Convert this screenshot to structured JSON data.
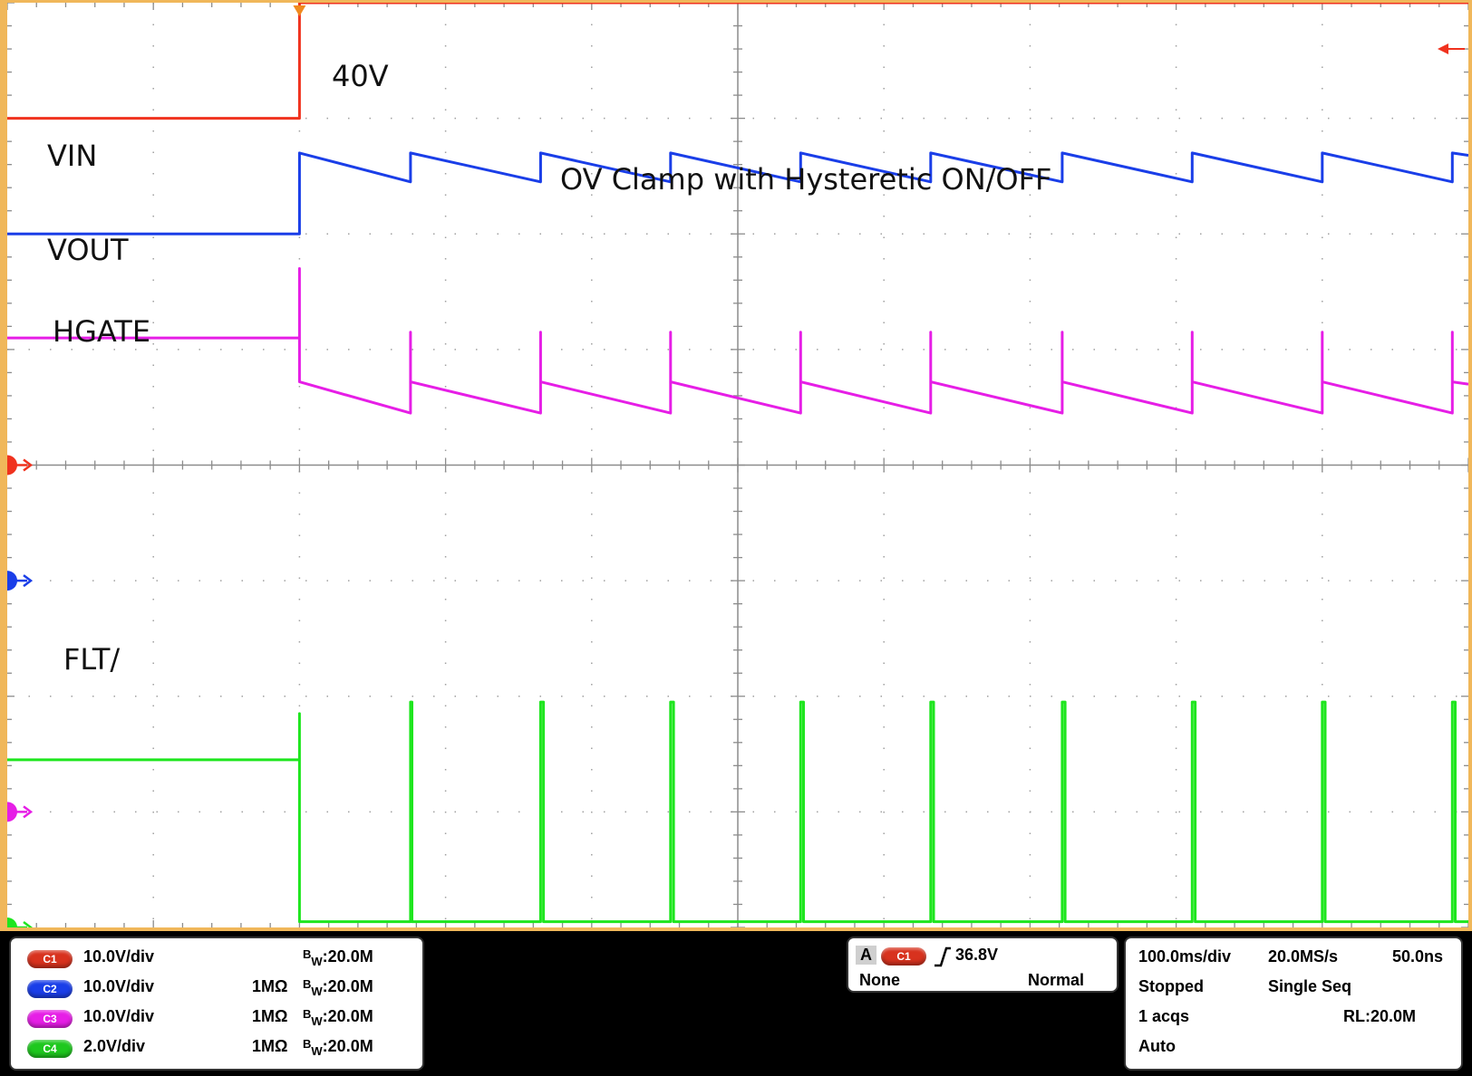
{
  "colors": {
    "ch1": "#f0321e",
    "ch2": "#1a3ee8",
    "ch3": "#e61ee6",
    "ch4": "#1ee61e",
    "frame": "#f0b75a",
    "grid": "#a0a0a0"
  },
  "annotations": {
    "vin": "VIN",
    "vout": "VOUT",
    "hgate": "HGATE",
    "flt": "FLT/",
    "level_40v": "40V",
    "caption": "OV Clamp with Hysteretic ON/OFF"
  },
  "channels": [
    {
      "chip": "C1",
      "scale": "10.0V/div",
      "impedance": "",
      "bw_b": "B",
      "bw_w": "W",
      "bw_val": ":20.0M"
    },
    {
      "chip": "C2",
      "scale": "10.0V/div",
      "impedance": "1MΩ",
      "bw_b": "B",
      "bw_w": "W",
      "bw_val": ":20.0M"
    },
    {
      "chip": "C3",
      "scale": "10.0V/div",
      "impedance": "1MΩ",
      "bw_b": "B",
      "bw_w": "W",
      "bw_val": ":20.0M"
    },
    {
      "chip": "C4",
      "scale": "2.0V/div",
      "impedance": "1MΩ",
      "bw_b": "B",
      "bw_w": "W",
      "bw_val": ":20.0M"
    }
  ],
  "trigger": {
    "a_label": "A",
    "source": "C1",
    "slope_icon": "rising-edge-icon",
    "level": "36.8V",
    "coupling": "None",
    "mode": "Normal"
  },
  "acquisition": {
    "timebase": "100.0ms/div",
    "sample_rate": "20.0MS/s",
    "resolution": "50.0ns",
    "state": "Stopped",
    "sequence": "Single Seq",
    "acqs": "1 acqs",
    "record_length": "RL:20.0M",
    "trigger_mode": "Auto"
  },
  "chart_data": {
    "type": "line",
    "x_unit": "div",
    "y_unit": "div",
    "xlim": [
      -5,
      5
    ],
    "ylim": [
      -4,
      4
    ],
    "grid": true,
    "trigger_position_div": -3.0,
    "series": [
      {
        "name": "VIN",
        "color": "#f0321e",
        "x": [
          -5,
          -3.0,
          -3.0,
          5
        ],
        "y": [
          3.0,
          3.0,
          4.0,
          4.0
        ]
      },
      {
        "name": "VOUT",
        "color": "#1a3ee8",
        "pulse_times": [
          -3.0,
          -2.24,
          -1.35,
          -0.46,
          0.43,
          1.32,
          2.22,
          3.11,
          4.0,
          4.89
        ],
        "x": [
          -5,
          -3.0,
          -3.0,
          -2.24,
          -2.24,
          -1.35,
          -1.35,
          -0.46,
          -0.46,
          0.43,
          0.43,
          1.32,
          1.32,
          2.22,
          2.22,
          3.11,
          3.11,
          4.0,
          4.0,
          4.89,
          4.89,
          5
        ],
        "y": [
          2.0,
          2.0,
          2.7,
          2.45,
          2.7,
          2.45,
          2.7,
          2.45,
          2.7,
          2.45,
          2.7,
          2.45,
          2.7,
          2.45,
          2.7,
          2.45,
          2.7,
          2.45,
          2.7,
          2.45,
          2.7,
          2.68
        ]
      },
      {
        "name": "HGATE",
        "color": "#e61ee6",
        "x": [
          -5,
          -3.0,
          -3.0,
          -3.0,
          -2.24,
          -2.24,
          -2.24,
          -1.35,
          -1.35,
          -1.35,
          -0.46,
          -0.46,
          -0.46,
          0.43,
          0.43,
          0.43,
          1.32,
          1.32,
          1.32,
          2.22,
          2.22,
          2.22,
          3.11,
          3.11,
          3.11,
          4.0,
          4.0,
          4.0,
          4.89,
          4.89,
          4.89,
          5
        ],
        "y": [
          1.1,
          1.1,
          1.7,
          0.72,
          0.45,
          1.15,
          0.72,
          0.45,
          1.15,
          0.72,
          0.45,
          1.15,
          0.72,
          0.45,
          1.15,
          0.72,
          0.45,
          1.15,
          0.72,
          0.45,
          1.15,
          0.72,
          0.45,
          1.15,
          0.72,
          0.45,
          1.15,
          0.72,
          0.45,
          1.15,
          0.72,
          0.7
        ]
      },
      {
        "name": "FLT/",
        "color": "#1ee61e",
        "x": [
          -5,
          -3.0,
          -3.0,
          -3.0,
          -2.24,
          -2.24,
          -2.23,
          -2.23,
          -1.35,
          -1.35,
          -1.33,
          -1.33,
          -0.46,
          -0.46,
          -0.44,
          -0.44,
          0.43,
          0.43,
          0.45,
          0.45,
          1.32,
          1.32,
          1.34,
          1.34,
          2.22,
          2.22,
          2.24,
          2.24,
          3.11,
          3.11,
          3.13,
          3.13,
          4.0,
          4.0,
          4.02,
          4.02,
          4.89,
          4.89,
          4.91,
          4.91,
          5
        ],
        "y": [
          -2.55,
          -2.55,
          -2.15,
          -3.95,
          -3.95,
          -2.05,
          -2.05,
          -3.95,
          -3.95,
          -2.05,
          -2.05,
          -3.95,
          -3.95,
          -2.05,
          -2.05,
          -3.95,
          -3.95,
          -2.05,
          -2.05,
          -3.95,
          -3.95,
          -2.05,
          -2.05,
          -3.95,
          -3.95,
          -2.05,
          -2.05,
          -3.95,
          -3.95,
          -2.05,
          -2.05,
          -3.95,
          -3.95,
          -2.05,
          -2.05,
          -3.95,
          -3.95,
          -2.05,
          -2.05,
          -3.95,
          -3.95
        ]
      }
    ],
    "ground_markers": [
      {
        "chip": "1",
        "color": "#f0321e",
        "y_div": 0
      },
      {
        "chip": "2",
        "color": "#1a3ee8",
        "y_div": -1
      },
      {
        "chip": "3",
        "color": "#e61ee6",
        "y_div": -3
      },
      {
        "chip": "4",
        "color": "#1ee61e",
        "y_div": -4
      }
    ],
    "ch1_level_marker_y_div": 3.6
  }
}
